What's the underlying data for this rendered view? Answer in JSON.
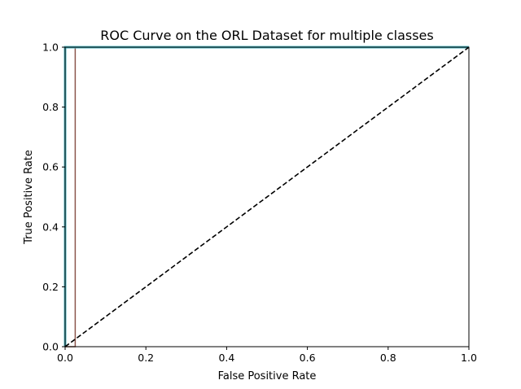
{
  "chart_data": {
    "type": "line",
    "title": "ROC Curve on the ORL Dataset for multiple classes",
    "xlabel": "False Positive Rate",
    "ylabel": "True Positive Rate",
    "xlim": [
      0.0,
      1.0
    ],
    "ylim": [
      0.0,
      1.0
    ],
    "xticks": [
      "0.0",
      "0.2",
      "0.4",
      "0.6",
      "0.8",
      "1.0"
    ],
    "yticks": [
      "0.0",
      "0.2",
      "0.4",
      "0.6",
      "0.8",
      "1.0"
    ],
    "grid": false,
    "series": [
      {
        "color": "#8c564b",
        "x": [
          0.0,
          0.025,
          0.025,
          1.0
        ],
        "y": [
          0.0,
          0.0,
          1.0,
          1.0
        ]
      },
      {
        "color": "#4cb3bf",
        "x": [
          0.0,
          0.0,
          1.0
        ],
        "y": [
          0.0,
          1.0,
          1.0
        ]
      },
      {
        "color": "#000000",
        "dashed": true,
        "x": [
          0.0,
          1.0
        ],
        "y": [
          0.0,
          1.0
        ]
      }
    ]
  }
}
